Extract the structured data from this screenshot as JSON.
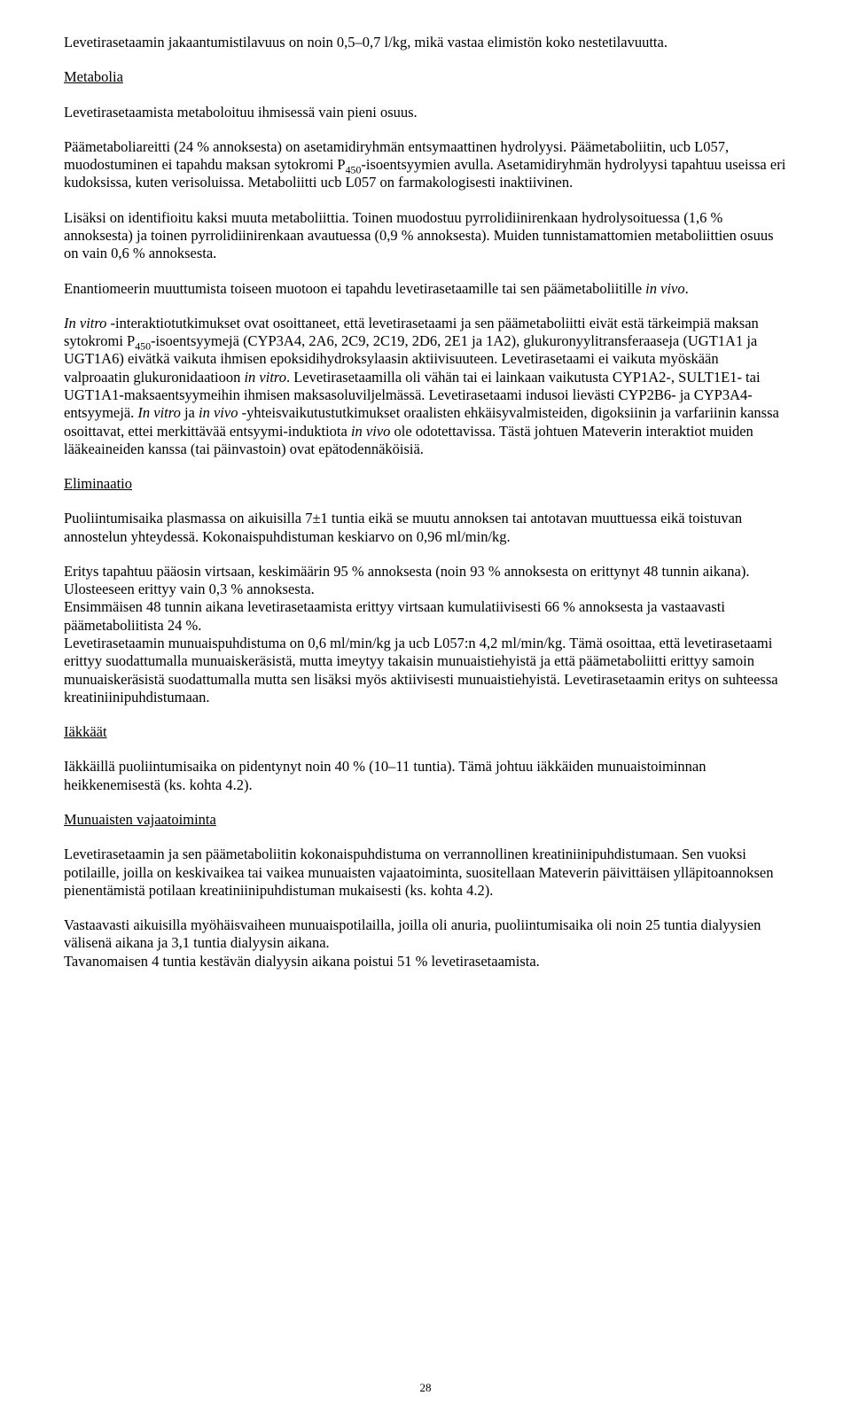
{
  "page_number": "28",
  "paragraphs": {
    "p1": "Levetirasetaamin jakaantumistilavuus on noin 0,5–0,7 l/kg, mikä vastaa elimistön koko nestetilavuutta.",
    "h1": "Metabolia",
    "p2": "Levetirasetaamista metaboloituu ihmisessä vain pieni osuus.",
    "p3a": "Päämetaboliareitti (24 % annoksesta) on asetamidiryhmän entsymaattinen hydrolyysi. Päämetaboliitin, ucb L057, muodostuminen ei tapahdu maksan sytokromi P",
    "p3b": "-isoentsyymien avulla. Asetamidiryhmän hydrolyysi tapahtuu useissa eri kudoksissa, kuten verisoluissa. Metaboliitti ucb L057 on farmakologisesti inaktiivinen.",
    "p4": "Lisäksi on identifioitu kaksi muuta metaboliittia. Toinen muodostuu pyrrolidiinirenkaan hydrolysoituessa (1,6 % annoksesta) ja toinen pyrrolidiinirenkaan avautuessa (0,9 % annoksesta). Muiden tunnistamattomien metaboliittien osuus on vain 0,6 % annoksesta.",
    "p5a": "Enantiomeerin muuttumista toiseen muotoon ei tapahdu levetirasetaamille tai sen päämetaboliitille ",
    "p5b": "in vivo",
    "p5c": ".",
    "p6a": "In vitro",
    "p6b": " -interaktiotutkimukset ovat osoittaneet, että levetirasetaami ja sen päämetaboliitti eivät estä tärkeimpiä maksan sytokromi P",
    "p6c": "-isoentsyymejä (CYP3A4, 2A6, 2C9, 2C19, 2D6, 2E1 ja 1A2), glukuronyylitransferaaseja (UGT1A1 ja UGT1A6) eivätkä vaikuta ihmisen epoksidihydroksylaasin aktiivisuuteen. Levetirasetaami ei vaikuta myöskään valproaatin glukuronidaatioon ",
    "p6d": "in vitro",
    "p6e": ". Levetirasetaamilla oli vähän tai ei lainkaan vaikutusta CYP1A2-, SULT1E1- tai UGT1A1-maksaentsyymeihin ihmisen maksasoluviljelmässä. Levetirasetaami indusoi lievästi CYP2B6- ja CYP3A4-entsyymejä. ",
    "p6f": "In vitro",
    "p6g": " ja ",
    "p6h": "in vivo",
    "p6i": " -yhteisvaikutustutkimukset oraalisten ehkäisyvalmisteiden, digoksiinin ja varfariinin kanssa osoittavat, ettei merkittävää entsyymi-induktiota ",
    "p6j": "in vivo",
    "p6k": " ole odotettavissa. Tästä johtuen Mateverin interaktiot muiden lääkeaineiden kanssa (tai päinvastoin) ovat epätodennäköisiä.",
    "h2": "Eliminaatio",
    "p7": "Puoliintumisaika plasmassa on aikuisilla 7±1 tuntia eikä se muutu annoksen tai antotavan muuttuessa eikä toistuvan annostelun yhteydessä. Kokonaispuhdistuman keskiarvo on 0,96 ml/min/kg.",
    "p8": "Eritys tapahtuu pääosin virtsaan, keskimäärin 95 % annoksesta (noin 93 % annoksesta on erittynyt 48 tunnin aikana). Ulosteeseen erittyy vain 0,3 % annoksesta.",
    "p8b": "Ensimmäisen 48 tunnin aikana levetirasetaamista erittyy virtsaan kumulatiivisesti 66 % annoksesta ja vastaavasti päämetaboliitista 24 %.",
    "p8c": "Levetirasetaamin munuaispuhdistuma on 0,6 ml/min/kg ja ucb L057:n 4,2 ml/min/kg. Tämä osoittaa, että levetirasetaami erittyy suodattumalla munuaiskeräsistä, mutta imeytyy takaisin munuaistiehyistä ja että päämetaboliitti erittyy samoin munuaiskeräsistä suodattumalla mutta sen lisäksi myös aktiivisesti munuaistiehyistä. Levetirasetaamin eritys on suhteessa kreatiniinipuhdistumaan.",
    "h3": "Iäkkäät",
    "p9": "Iäkkäillä puoliintumisaika on pidentynyt noin 40 % (10–11 tuntia). Tämä johtuu iäkkäiden munuaistoiminnan heikkenemisestä (ks. kohta 4.2).",
    "h4": "Munuaisten vajaatoiminta",
    "p10": "Levetirasetaamin ja sen päämetaboliitin kokonaispuhdistuma on verrannollinen kreatiniinipuhdistumaan. Sen vuoksi potilaille, joilla on keskivaikea tai vaikea munuaisten vajaatoiminta, suositellaan Mateverin päivittäisen ylläpitoannoksen pienentämistä potilaan kreatiniinipuhdistuman mukaisesti (ks. kohta 4.2).",
    "p11": "Vastaavasti aikuisilla myöhäisvaiheen munuaispotilailla, joilla oli anuria, puoliintumisaika oli noin 25 tuntia dialyysien välisenä aikana ja 3,1 tuntia dialyysin aikana.",
    "p11b": "Tavanomaisen 4 tuntia kestävän dialyysin aikana poistui 51 % levetirasetaamista.",
    "sub450": "450"
  }
}
